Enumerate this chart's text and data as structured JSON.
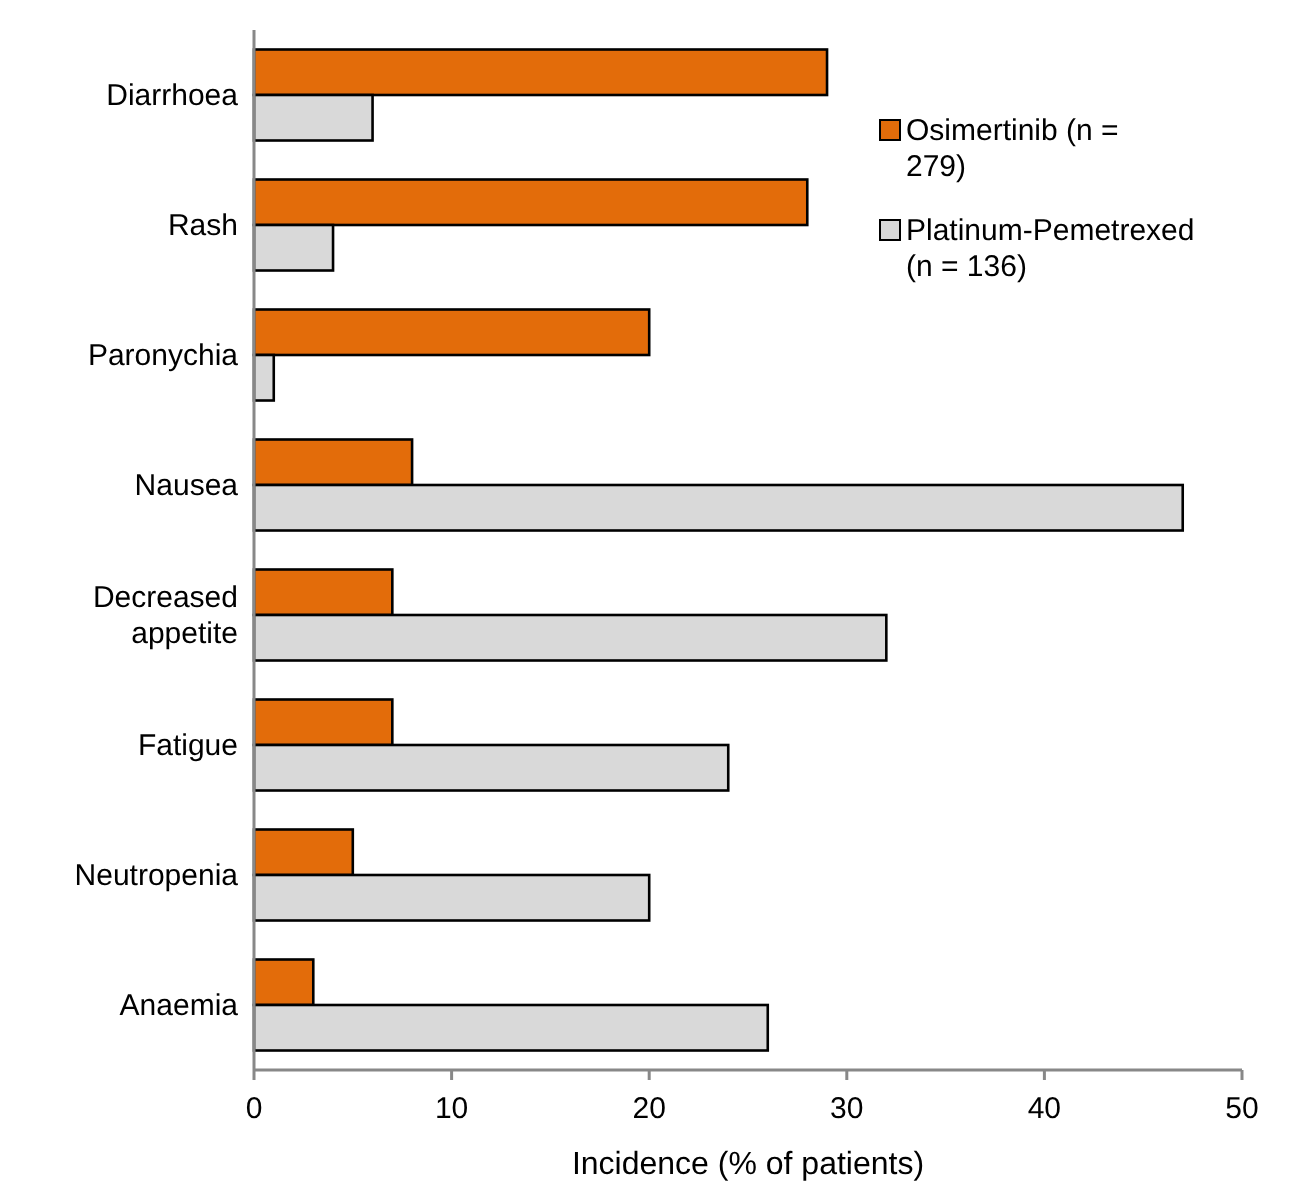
{
  "chart_data": {
    "type": "bar",
    "orientation": "horizontal",
    "xlabel": "Incidence (% of patients)",
    "categories": [
      "Diarrhoea",
      "Rash",
      "Paronychia",
      "Nausea",
      "Decreased appetite",
      "Fatigue",
      "Neutropenia",
      "Anaemia"
    ],
    "series": [
      {
        "name": "Osimertinib (n = 279)",
        "color": "#e36c0a",
        "values": [
          29,
          28,
          20,
          8,
          7,
          7,
          5,
          3
        ]
      },
      {
        "name": "Platinum-Pemetrexed (n = 136)",
        "color": "#d9d9d9",
        "values": [
          6,
          4,
          1,
          47,
          32,
          24,
          20,
          26
        ]
      }
    ],
    "xlim": [
      0,
      50
    ],
    "xticks": [
      0,
      10,
      20,
      30,
      40,
      50
    ],
    "grid": false,
    "legend": "top right"
  }
}
